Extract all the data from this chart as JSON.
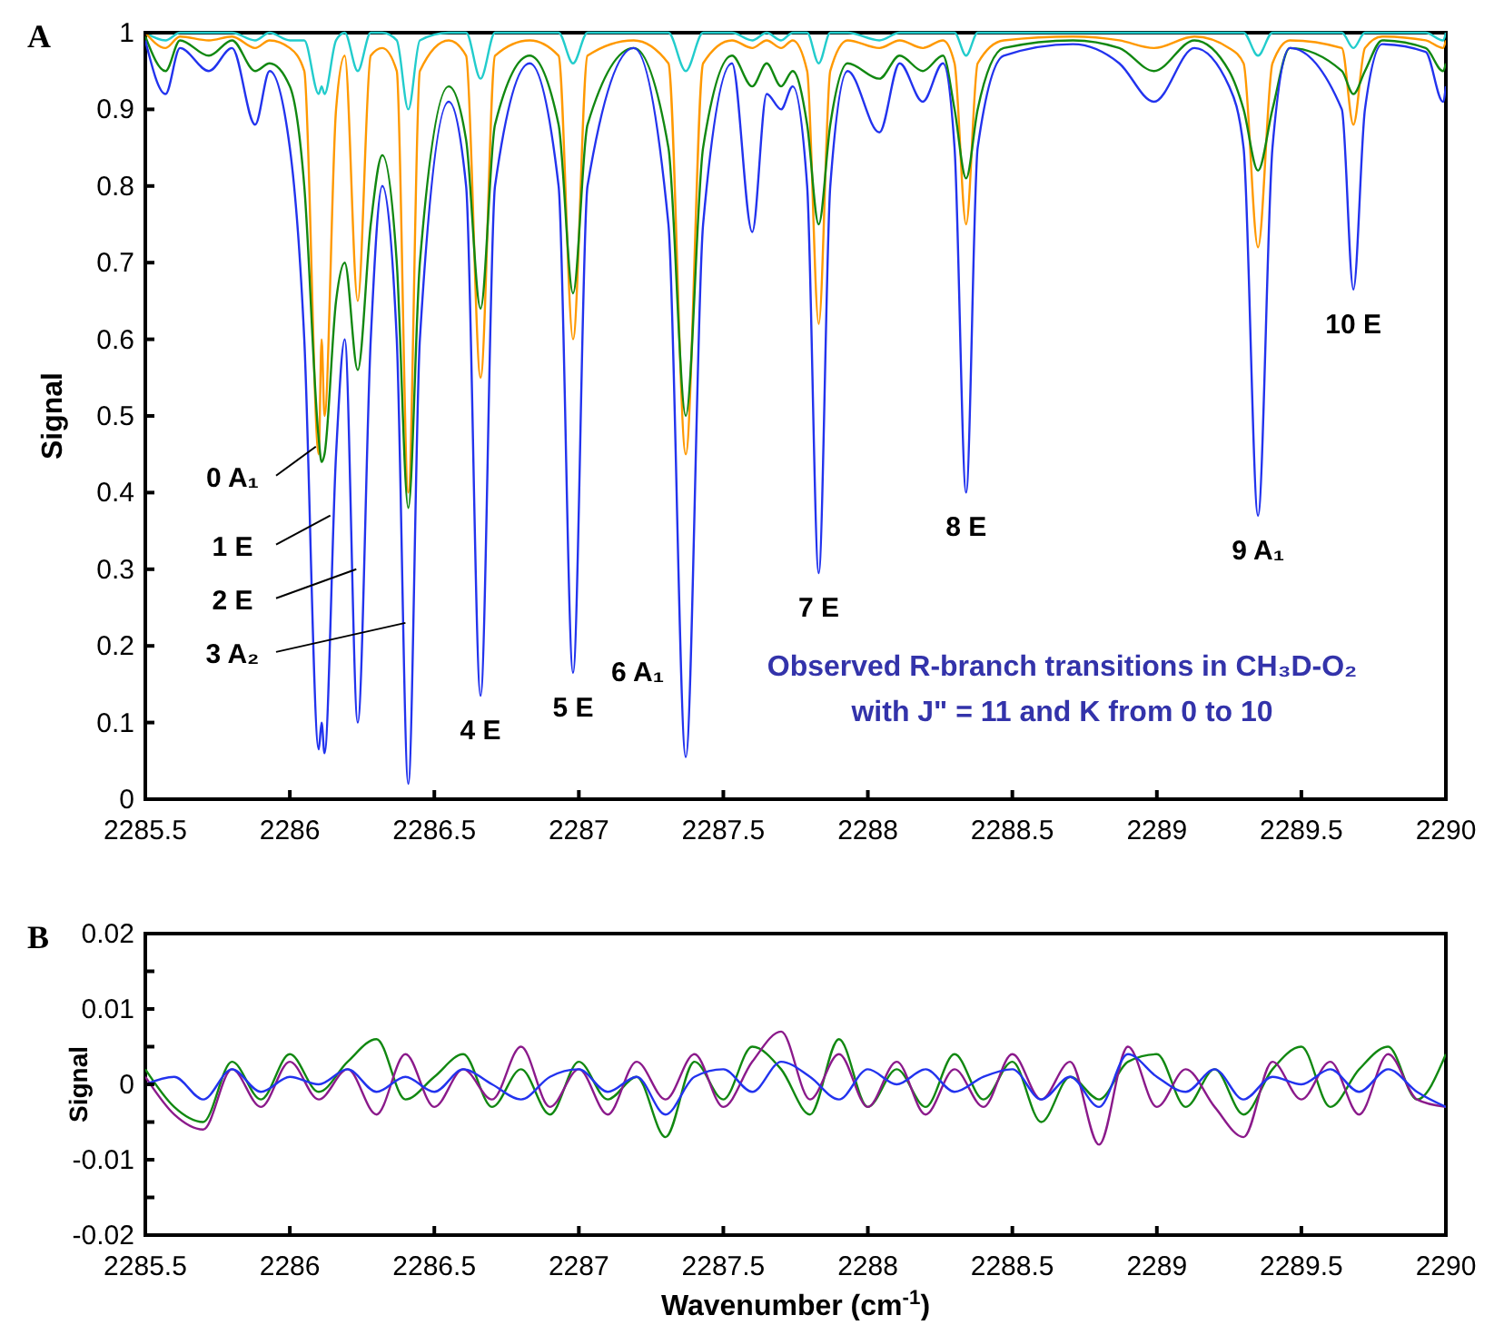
{
  "chart_data": [
    {
      "type": "line",
      "title": "A",
      "ylabel": "Signal",
      "xlim": [
        2285.5,
        2290
      ],
      "ylim": [
        0,
        1
      ],
      "grid": false,
      "marker": "none",
      "line_style": "solid",
      "xticks": [
        {
          "value": 2285.5,
          "label": "2285.5"
        },
        2286,
        {
          "value": 2286.5,
          "label": "2286.5"
        },
        2287,
        {
          "value": 2287.5,
          "label": "2287.5"
        },
        2288,
        {
          "value": 2288.5,
          "label": "2288.5"
        },
        2289,
        {
          "value": 2289.5,
          "label": "2289.5"
        },
        2290
      ],
      "yticks": [
        0,
        0.1,
        0.2,
        0.3,
        0.4,
        0.5,
        0.6,
        0.7,
        0.8,
        0.9,
        1
      ],
      "x": [
        2285.5,
        2285.57,
        2285.62,
        2285.72,
        2285.8,
        2285.88,
        2285.93,
        2286.0,
        2286.05,
        2286.1,
        2286.11,
        2286.12,
        2286.16,
        2286.19,
        2286.235,
        2286.28,
        2286.32,
        2286.37,
        2286.41,
        2286.45,
        2286.55,
        2286.61,
        2286.66,
        2286.71,
        2286.83,
        2286.93,
        2286.98,
        2287.03,
        2287.19,
        2287.31,
        2287.37,
        2287.43,
        2287.53,
        2287.6,
        2287.65,
        2287.7,
        2287.74,
        2287.79,
        2287.83,
        2287.87,
        2287.93,
        2288.04,
        2288.11,
        2288.19,
        2288.26,
        2288.3,
        2288.34,
        2288.38,
        2288.47,
        2288.71,
        2288.87,
        2288.99,
        2289.13,
        2289.25,
        2289.3,
        2289.35,
        2289.4,
        2289.46,
        2289.64,
        2289.68,
        2289.72,
        2289.78,
        2289.93,
        2289.99,
        2290
      ],
      "series": [
        {
          "color": "#22cccc",
          "values": [
            1,
            0.99,
            1,
            1,
            1,
            0.99,
            1,
            0.99,
            0.99,
            0.92,
            0.93,
            0.92,
            0.99,
            1,
            0.95,
            1,
            1,
            0.99,
            0.9,
            0.99,
            1,
            1,
            0.94,
            1,
            1,
            1,
            0.96,
            1,
            1,
            1,
            0.95,
            1,
            1,
            0.99,
            1,
            0.99,
            1,
            1,
            0.96,
            1,
            1,
            0.99,
            1,
            1,
            1,
            1,
            0.97,
            1,
            1,
            1,
            1,
            1,
            1,
            1,
            1,
            0.97,
            1,
            1,
            1,
            0.98,
            1,
            1,
            1,
            0.99,
            1
          ]
        },
        {
          "color": "#ff9900",
          "values": [
            1,
            0.98,
            0.995,
            0.99,
            0.995,
            0.98,
            0.99,
            0.98,
            0.95,
            0.45,
            0.6,
            0.5,
            0.9,
            0.97,
            0.65,
            0.97,
            0.98,
            0.95,
            0.4,
            0.95,
            0.99,
            0.97,
            0.55,
            0.97,
            0.99,
            0.97,
            0.6,
            0.97,
            0.99,
            0.96,
            0.45,
            0.96,
            0.99,
            0.98,
            0.99,
            0.98,
            0.99,
            0.95,
            0.62,
            0.95,
            0.99,
            0.98,
            0.99,
            0.98,
            0.99,
            0.96,
            0.75,
            0.96,
            0.99,
            0.995,
            0.99,
            0.98,
            0.995,
            0.98,
            0.96,
            0.72,
            0.96,
            0.99,
            0.98,
            0.88,
            0.98,
            0.995,
            0.99,
            0.98,
            0.99
          ]
        },
        {
          "color": "#118811",
          "values": [
            0.995,
            0.95,
            0.99,
            0.97,
            0.99,
            0.95,
            0.96,
            0.93,
            0.8,
            0.47,
            0.44,
            0.45,
            0.65,
            0.7,
            0.56,
            0.75,
            0.84,
            0.7,
            0.38,
            0.7,
            0.93,
            0.86,
            0.64,
            0.88,
            0.97,
            0.88,
            0.66,
            0.88,
            0.98,
            0.85,
            0.5,
            0.85,
            0.97,
            0.93,
            0.96,
            0.93,
            0.95,
            0.88,
            0.75,
            0.88,
            0.96,
            0.94,
            0.97,
            0.95,
            0.97,
            0.9,
            0.81,
            0.9,
            0.98,
            0.99,
            0.98,
            0.95,
            0.99,
            0.95,
            0.9,
            0.82,
            0.9,
            0.98,
            0.95,
            0.92,
            0.95,
            0.99,
            0.98,
            0.95,
            0.96
          ]
        },
        {
          "color": "#2233ee",
          "values": [
            0.99,
            0.92,
            0.98,
            0.95,
            0.98,
            0.88,
            0.95,
            0.85,
            0.6,
            0.065,
            0.1,
            0.06,
            0.45,
            0.6,
            0.1,
            0.6,
            0.8,
            0.6,
            0.02,
            0.6,
            0.91,
            0.8,
            0.135,
            0.8,
            0.96,
            0.8,
            0.165,
            0.8,
            0.98,
            0.75,
            0.055,
            0.75,
            0.96,
            0.74,
            0.92,
            0.9,
            0.93,
            0.8,
            0.295,
            0.8,
            0.95,
            0.87,
            0.96,
            0.91,
            0.96,
            0.85,
            0.4,
            0.85,
            0.97,
            0.985,
            0.96,
            0.91,
            0.98,
            0.93,
            0.85,
            0.37,
            0.85,
            0.98,
            0.9,
            0.665,
            0.9,
            0.985,
            0.975,
            0.91,
            0.93
          ]
        }
      ],
      "annotations": [
        {
          "text": "0 A₁",
          "x": 2286.09,
          "y": 0.46
        },
        {
          "text": "1 E",
          "x": 2286.14,
          "y": 0.37
        },
        {
          "text": "2 E",
          "x": 2286.23,
          "y": 0.3
        },
        {
          "text": "3 A₂",
          "x": 2286.4,
          "y": 0.23
        },
        {
          "text": "4 E",
          "x": 2286.66,
          "y": 0.135
        },
        {
          "text": "5 E",
          "x": 2286.98,
          "y": 0.165
        },
        {
          "text": "6 A₁",
          "x": 2287.37,
          "y": 0.055
        },
        {
          "text": "7 E",
          "x": 2287.83,
          "y": 0.295
        },
        {
          "text": "8 E",
          "x": 2288.34,
          "y": 0.4
        },
        {
          "text": "9 A₁",
          "x": 2289.35,
          "y": 0.37
        },
        {
          "text": "10 E",
          "x": 2289.68,
          "y": 0.665
        },
        "Observed  R-branch transitions in CH₃D-O₂",
        "with J\" = 11 and K from 0 to 10"
      ]
    },
    {
      "type": "line",
      "title": "B",
      "ylabel": "Signal",
      "xlabel": "Wavenumber (cm$^{-1}$)",
      "xlim": [
        2285.5,
        2290
      ],
      "ylim": [
        -0.02,
        0.02
      ],
      "grid": false,
      "marker": "none",
      "line_style": "solid",
      "xticks": [
        {
          "value": 2285.5,
          "label": "2285.5"
        },
        2286,
        {
          "value": 2286.5,
          "label": "2286.5"
        },
        2287,
        {
          "value": 2287.5,
          "label": "2287.5"
        },
        2288,
        {
          "value": 2288.5,
          "label": "2288.5"
        },
        2289,
        {
          "value": 2289.5,
          "label": "2289.5"
        },
        2290
      ],
      "yticks": [
        -0.02,
        {
          "value": -0.015,
          "label": null
        },
        -0.01,
        {
          "value": -0.005,
          "label": null
        },
        0,
        {
          "value": 0.005,
          "label": null
        },
        0.01,
        {
          "value": 0.015,
          "label": null
        },
        0.02
      ],
      "x": [
        2285.5,
        2285.6,
        2285.7,
        2285.8,
        2285.9,
        2286.0,
        2286.1,
        2286.2,
        2286.3,
        2286.4,
        2286.5,
        2286.6,
        2286.7,
        2286.8,
        2286.9,
        2287.0,
        2287.1,
        2287.2,
        2287.3,
        2287.4,
        2287.5,
        2287.6,
        2287.7,
        2287.8,
        2287.9,
        2288.0,
        2288.1,
        2288.2,
        2288.3,
        2288.4,
        2288.5,
        2288.6,
        2288.7,
        2288.8,
        2288.9,
        2289.0,
        2289.1,
        2289.2,
        2289.3,
        2289.4,
        2289.5,
        2289.6,
        2289.7,
        2289.8,
        2289.9,
        2290.0
      ],
      "series": [
        {
          "color": "#118811",
          "values": [
            0.002,
            -0.003,
            -0.005,
            0.003,
            -0.002,
            0.004,
            -0.001,
            0.003,
            0.006,
            -0.002,
            0.001,
            0.004,
            -0.003,
            0.002,
            -0.004,
            0.003,
            -0.002,
            0.001,
            -0.007,
            0.003,
            -0.002,
            0.005,
            0.002,
            -0.004,
            0.006,
            -0.003,
            0.002,
            -0.003,
            0.004,
            -0.002,
            0.003,
            -0.005,
            0.001,
            -0.002,
            0.003,
            0.004,
            -0.003,
            0.002,
            -0.004,
            0.002,
            0.005,
            -0.003,
            0.002,
            0.005,
            -0.002,
            0.004
          ]
        },
        {
          "color": "#8b1a8b",
          "values": [
            0.001,
            -0.004,
            -0.006,
            0.002,
            -0.003,
            0.003,
            -0.002,
            0.002,
            -0.004,
            0.004,
            -0.003,
            0.002,
            -0.002,
            0.005,
            -0.003,
            0.002,
            -0.004,
            0.003,
            -0.002,
            0.004,
            -0.003,
            0.003,
            0.007,
            -0.002,
            0.004,
            -0.003,
            0.003,
            -0.004,
            0.002,
            -0.003,
            0.004,
            -0.002,
            0.003,
            -0.008,
            0.005,
            -0.003,
            0.002,
            -0.003,
            -0.007,
            0.003,
            -0.002,
            0.003,
            -0.004,
            0.004,
            -0.002,
            -0.003
          ]
        },
        {
          "color": "#2233ee",
          "values": [
            0,
            0.001,
            -0.002,
            0.002,
            -0.001,
            0.001,
            0,
            0.002,
            -0.001,
            0.001,
            -0.001,
            0.002,
            0,
            -0.002,
            0.001,
            0.002,
            -0.001,
            0.001,
            -0.004,
            0.001,
            0.002,
            -0.001,
            0.003,
            0.001,
            -0.002,
            0.002,
            0,
            0.002,
            -0.001,
            0.001,
            0.002,
            -0.002,
            0.001,
            -0.003,
            0.004,
            0.001,
            -0.001,
            0.002,
            -0.002,
            0.001,
            0,
            0.002,
            -0.001,
            0.002,
            -0.001,
            -0.003
          ]
        }
      ]
    }
  ]
}
